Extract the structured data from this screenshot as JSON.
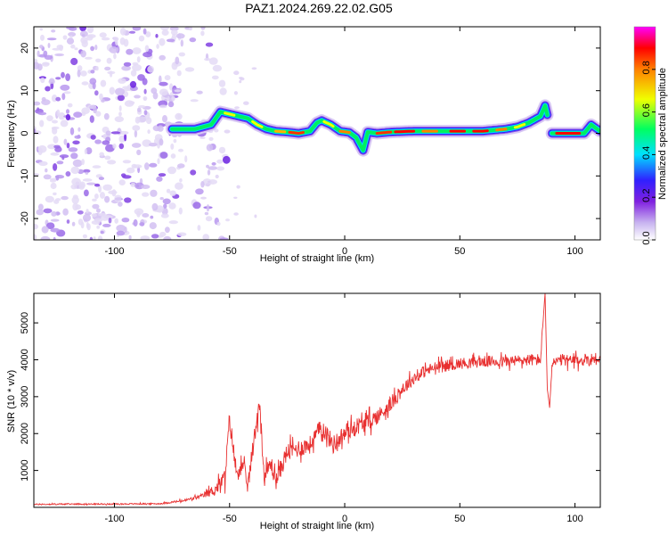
{
  "title": "PAZ1.2024.269.22.02.G05",
  "chart_data": [
    {
      "type": "heatmap",
      "xlabel": "Height of straight line (km)",
      "ylabel": "Frequency (Hz)",
      "xlim": [
        -135,
        111
      ],
      "ylim": [
        -25,
        25
      ],
      "xticks": [
        -100,
        -50,
        0,
        50,
        100
      ],
      "yticks": [
        -20,
        -10,
        0,
        10,
        20
      ],
      "grid": false,
      "colorbar": {
        "label": "Normalized spectral amplitude",
        "range": [
          0,
          1
        ],
        "ticks": [
          0.0,
          0.2,
          0.4,
          0.6,
          0.8
        ],
        "colors": [
          "#ffffff",
          "#c8b4f0",
          "#8020e0",
          "#3020ff",
          "#00e0ff",
          "#00ff60",
          "#f0ff00",
          "#ff8000",
          "#ff0000",
          "#ff00ff"
        ]
      },
      "noise_region": {
        "x": [
          -135,
          -62
        ],
        "y": [
          -25,
          25
        ]
      },
      "ridge": {
        "x": [
          -75,
          -65,
          -58,
          -54,
          -50,
          -46,
          -42,
          -38,
          -34,
          -30,
          -25,
          -20,
          -15,
          -12,
          -10,
          -6,
          -2,
          2,
          5,
          8,
          10,
          14,
          20,
          30,
          40,
          50,
          60,
          70,
          75,
          80,
          85,
          87,
          90,
          95,
          100,
          104,
          107,
          111
        ],
        "y": [
          1.0,
          1.0,
          2.0,
          5.0,
          4.5,
          4.0,
          3.5,
          2.0,
          1.0,
          0.5,
          0.3,
          0.0,
          0.5,
          2.5,
          3.0,
          2.0,
          0.5,
          0.2,
          -1.0,
          -4.0,
          0.3,
          0.0,
          0.3,
          0.5,
          0.5,
          0.5,
          0.5,
          1.0,
          1.5,
          2.5,
          4.0,
          6.5,
          0.0,
          0.0,
          0.0,
          0.0,
          2.0,
          0.5
        ],
        "peak_amplitude": 1.0
      }
    },
    {
      "type": "line",
      "xlabel": "Height of straight line (km)",
      "ylabel": "SNR (10 * v/v)",
      "xlim": [
        -135,
        111
      ],
      "ylim": [
        0,
        5800
      ],
      "xticks": [
        -100,
        -50,
        0,
        50,
        100
      ],
      "yticks": [
        1000,
        2000,
        3000,
        4000,
        5000
      ],
      "grid": false,
      "series": [
        {
          "color": "#e83030",
          "x": [
            -135,
            -120,
            -100,
            -80,
            -70,
            -62,
            -56,
            -52,
            -50,
            -47,
            -45,
            -42,
            -39,
            -37,
            -35,
            -32,
            -30,
            -25,
            -20,
            -15,
            -10,
            -5,
            0,
            5,
            10,
            15,
            20,
            25,
            30,
            35,
            40,
            50,
            60,
            70,
            80,
            85,
            87,
            88,
            89,
            90,
            95,
            100,
            105,
            111
          ],
          "y": [
            80,
            90,
            90,
            100,
            180,
            300,
            500,
            800,
            2400,
            900,
            1200,
            600,
            2000,
            2900,
            800,
            1200,
            700,
            1500,
            1600,
            1700,
            2200,
            1700,
            2000,
            2200,
            2300,
            2500,
            2800,
            3200,
            3500,
            3700,
            3800,
            3900,
            3950,
            3950,
            4000,
            4000,
            5800,
            3200,
            2700,
            3900,
            4000,
            3950,
            4000,
            4050
          ],
          "noise_amplitude": [
            30,
            30,
            30,
            30,
            60,
            120,
            300,
            450,
            500,
            500,
            500,
            450,
            500,
            500,
            450,
            450,
            450,
            450,
            450,
            450,
            450,
            450,
            450,
            420,
            420,
            400,
            380,
            350,
            320,
            300,
            300,
            280,
            280,
            280,
            300,
            300,
            0,
            0,
            0,
            300,
            300,
            300,
            320,
            320
          ]
        }
      ]
    }
  ]
}
